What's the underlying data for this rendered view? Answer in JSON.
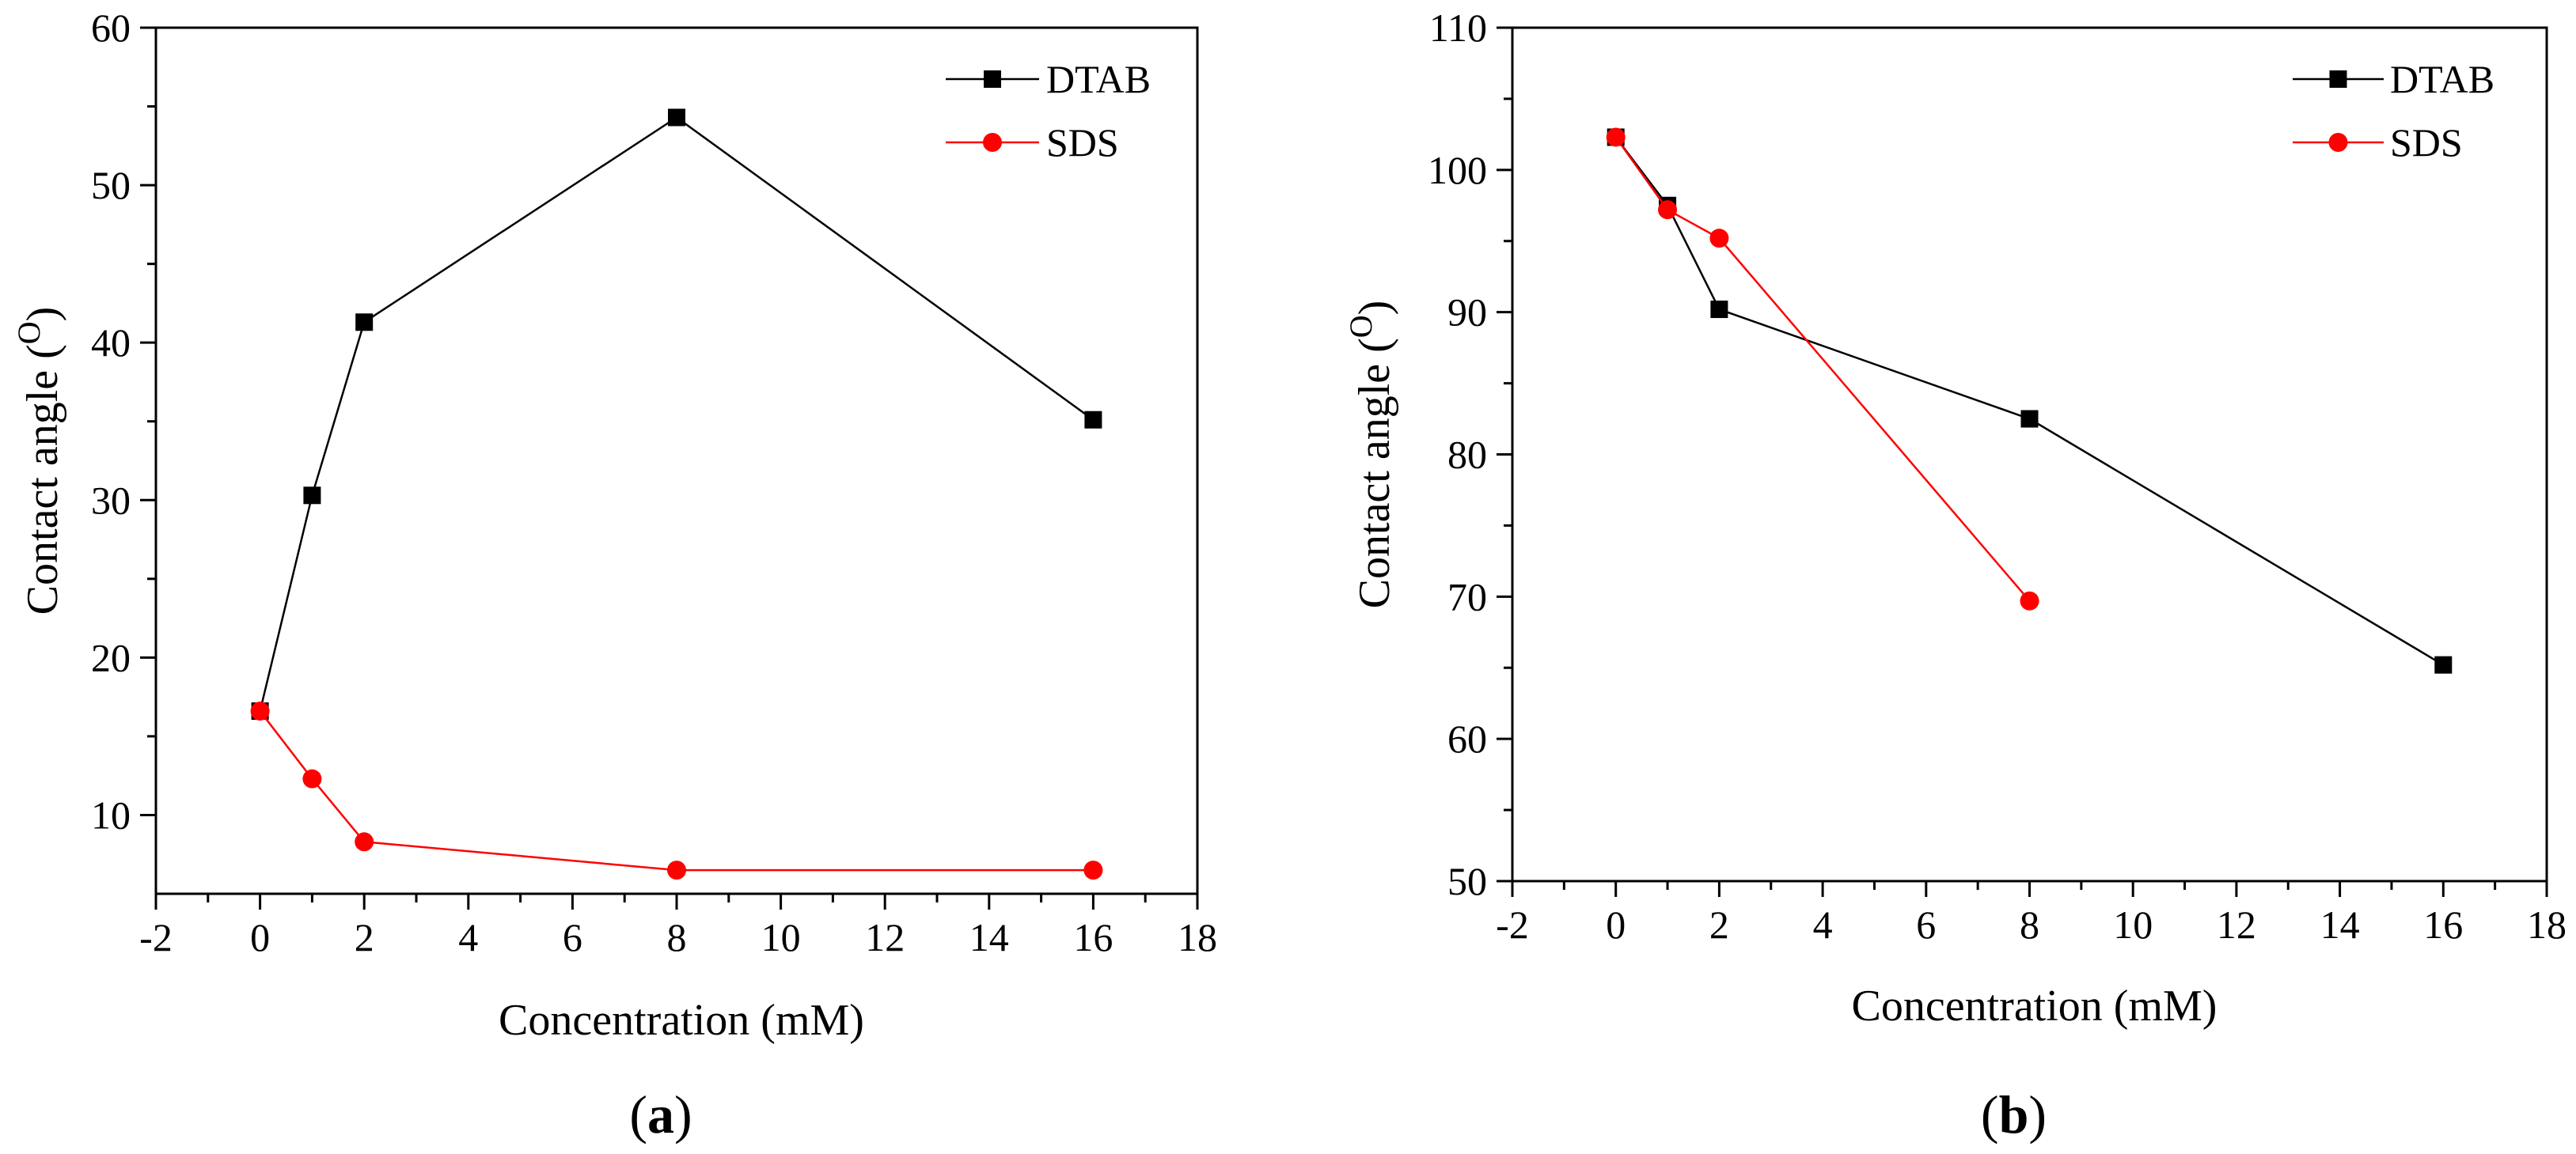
{
  "chart_data": [
    {
      "type": "line",
      "panel_label": "a",
      "xlabel": "Concentration (mM)",
      "ylabel": "Contact angle (",
      "ylabel_superscript": "O",
      "ylabel_suffix": ")",
      "xlim": [
        -2,
        18
      ],
      "ylim": [
        5,
        60
      ],
      "xticks": [
        -2,
        0,
        2,
        4,
        6,
        8,
        10,
        12,
        14,
        16,
        18
      ],
      "yticks": [
        10,
        20,
        30,
        40,
        50,
        60
      ],
      "legend_position": "top-right",
      "series": [
        {
          "name": "DTAB",
          "color": "#000000",
          "marker": "square",
          "x": [
            0,
            1,
            2,
            8,
            16
          ],
          "y": [
            16.6,
            30.3,
            41.3,
            54.3,
            35.1
          ]
        },
        {
          "name": "SDS",
          "color": "#ff0000",
          "marker": "circle",
          "x": [
            0,
            1,
            2,
            8,
            16
          ],
          "y": [
            16.6,
            12.3,
            8.3,
            6.5,
            6.5
          ]
        }
      ]
    },
    {
      "type": "line",
      "panel_label": "b",
      "xlabel": "Concentration (mM)",
      "ylabel": "Contact angle (",
      "ylabel_superscript": "O",
      "ylabel_suffix": ")",
      "xlim": [
        -2,
        18
      ],
      "ylim": [
        50,
        110
      ],
      "xticks": [
        -2,
        0,
        2,
        4,
        6,
        8,
        10,
        12,
        14,
        16,
        18
      ],
      "yticks": [
        50,
        60,
        70,
        80,
        90,
        100,
        110
      ],
      "legend_position": "top-right",
      "series": [
        {
          "name": "DTAB",
          "color": "#000000",
          "marker": "square",
          "x": [
            0,
            1,
            2,
            8,
            16
          ],
          "y": [
            102.3,
            97.5,
            90.2,
            82.5,
            65.2
          ]
        },
        {
          "name": "SDS",
          "color": "#ff0000",
          "marker": "circle",
          "x": [
            0,
            1,
            2,
            8
          ],
          "y": [
            102.3,
            97.2,
            95.2,
            69.7
          ]
        }
      ]
    }
  ]
}
